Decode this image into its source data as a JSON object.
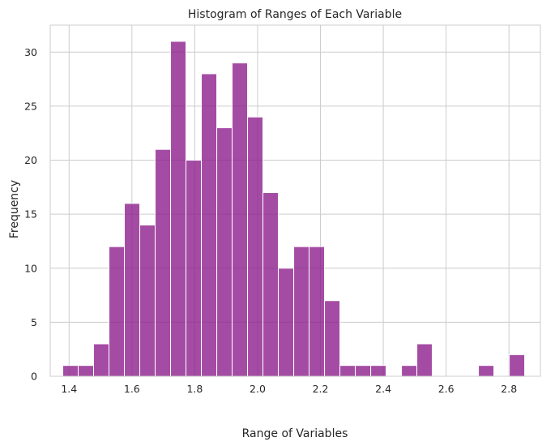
{
  "chart_data": {
    "type": "bar",
    "title": "Histogram of Ranges of Each Variable",
    "xlabel": "Range of Variables",
    "ylabel": "Frequency",
    "xlim": [
      1.34,
      2.9
    ],
    "ylim": [
      0,
      32.5
    ],
    "grid": true,
    "bar_color": "#8B1A8B",
    "grid_color": "#cccccc",
    "x_ticks": [
      1.4,
      1.6,
      1.8,
      2.0,
      2.2,
      2.4,
      2.6,
      2.8
    ],
    "x_tick_labels": [
      "1.4",
      "1.6",
      "1.8",
      "2.0",
      "2.2",
      "2.4",
      "2.6",
      "2.8"
    ],
    "y_ticks": [
      0,
      5,
      10,
      15,
      20,
      25,
      30
    ],
    "y_tick_labels": [
      "0",
      "5",
      "10",
      "15",
      "20",
      "25",
      "30"
    ],
    "bin_start": 1.38,
    "bin_width": 0.049,
    "values": [
      1,
      1,
      3,
      12,
      16,
      14,
      21,
      31,
      20,
      28,
      23,
      29,
      24,
      17,
      10,
      12,
      12,
      7,
      1,
      1,
      1,
      0,
      1,
      3,
      0,
      0,
      0,
      1,
      0,
      2
    ]
  }
}
